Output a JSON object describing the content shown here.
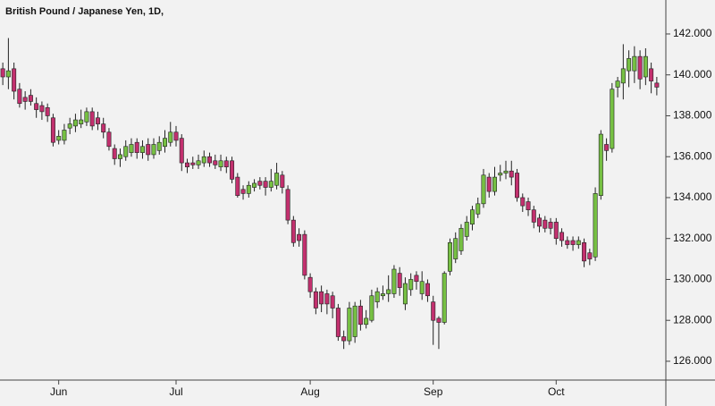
{
  "chart_data": {
    "type": "candlestick",
    "title": "British Pound / Japanese Yen, 1D,",
    "categories": [
      null,
      null,
      null,
      null,
      null,
      null,
      null,
      null,
      null,
      null,
      "Jun",
      null,
      null,
      null,
      null,
      null,
      null,
      null,
      null,
      null,
      null,
      null,
      null,
      null,
      null,
      null,
      null,
      null,
      null,
      null,
      null,
      "Jul",
      null,
      null,
      null,
      null,
      null,
      null,
      null,
      null,
      null,
      null,
      null,
      null,
      null,
      null,
      null,
      null,
      null,
      null,
      null,
      null,
      null,
      null,
      null,
      "Aug",
      null,
      null,
      null,
      null,
      null,
      null,
      null,
      null,
      null,
      null,
      null,
      null,
      null,
      null,
      null,
      null,
      null,
      null,
      null,
      null,
      null,
      "Sep",
      null,
      null,
      null,
      null,
      null,
      null,
      null,
      null,
      null,
      null,
      null,
      null,
      null,
      null,
      null,
      null,
      null,
      null,
      null,
      null,
      null,
      "Oct",
      null,
      null,
      null,
      null,
      null,
      null,
      null,
      null,
      null,
      null,
      null,
      null,
      null,
      null,
      null,
      null,
      null,
      null
    ],
    "open": [
      140.3,
      139.9,
      140.3,
      139.3,
      138.9,
      139.0,
      138.6,
      138.5,
      138.4,
      137.9,
      136.8,
      136.8,
      137.4,
      137.5,
      137.6,
      137.7,
      138.2,
      137.9,
      137.6,
      137.2,
      136.4,
      135.9,
      136.0,
      136.2,
      136.7,
      136.2,
      136.6,
      136.1,
      136.3,
      136.5,
      136.7,
      137.2,
      136.9,
      135.7,
      135.7,
      135.6,
      135.7,
      136.0,
      135.8,
      135.5,
      135.8,
      135.8,
      135.0,
      134.4,
      134.2,
      134.5,
      134.8,
      134.8,
      134.5,
      134.6,
      135.1,
      134.4,
      132.9,
      132.2,
      132.2,
      130.1,
      129.4,
      129.4,
      129.3,
      129.2,
      128.6,
      127.2,
      127.0,
      127.2,
      128.7,
      127.8,
      128.0,
      128.9,
      129.2,
      129.3,
      129.3,
      130.3,
      128.8,
      129.5,
      130.2,
      129.3,
      129.8,
      128.9,
      128.1,
      127.9,
      130.4,
      131.0,
      131.4,
      132.1,
      132.7,
      133.2,
      133.7,
      135.0,
      134.3,
      135.1,
      135.2,
      135.3,
      135.2,
      134.0,
      133.8,
      133.4,
      133.0,
      132.9,
      132.8,
      132.8,
      132.3,
      131.9,
      131.9,
      131.7,
      131.8,
      131.3,
      131.1,
      134.1,
      136.6,
      136.4,
      139.4,
      139.6,
      140.2,
      140.2,
      140.9,
      139.9,
      140.3,
      139.6
    ],
    "high": [
      140.6,
      141.8,
      140.6,
      139.6,
      139.2,
      139.3,
      138.9,
      138.7,
      138.6,
      138.1,
      137.3,
      137.6,
      137.9,
      138.1,
      138.3,
      138.4,
      138.4,
      138.2,
      137.9,
      137.4,
      136.6,
      136.4,
      136.8,
      136.9,
      136.9,
      136.8,
      136.9,
      136.9,
      137.0,
      137.3,
      137.7,
      137.5,
      137.1,
      135.9,
      136.0,
      136.1,
      136.3,
      136.2,
      136.1,
      136.1,
      136.0,
      136.0,
      135.2,
      134.6,
      134.8,
      134.9,
      135.0,
      135.0,
      135.4,
      135.7,
      135.3,
      134.6,
      133.1,
      132.5,
      132.4,
      130.3,
      129.6,
      129.7,
      129.5,
      129.4,
      128.8,
      127.5,
      128.9,
      128.9,
      129.0,
      128.5,
      129.5,
      129.6,
      129.7,
      130.2,
      130.7,
      130.6,
      130.1,
      130.3,
      130.4,
      130.4,
      130.0,
      129.2,
      128.2,
      130.4,
      132.0,
      132.3,
      132.7,
      133.1,
      133.6,
      134.0,
      135.4,
      135.2,
      135.5,
      135.6,
      135.8,
      135.8,
      135.4,
      134.2,
      134.0,
      133.6,
      133.2,
      133.1,
      133.0,
      133.0,
      132.5,
      132.1,
      132.1,
      132.1,
      132.0,
      131.5,
      134.5,
      137.3,
      136.9,
      139.6,
      139.9,
      141.5,
      141.2,
      141.4,
      141.2,
      141.3,
      140.6,
      139.9
    ],
    "low": [
      139.5,
      139.3,
      138.8,
      138.4,
      138.3,
      138.5,
      137.9,
      137.8,
      137.7,
      136.5,
      136.6,
      136.6,
      137.1,
      137.2,
      137.4,
      137.5,
      137.3,
      137.3,
      136.9,
      136.3,
      135.6,
      135.5,
      135.8,
      136.0,
      135.9,
      135.9,
      135.8,
      135.9,
      136.1,
      136.2,
      136.5,
      136.5,
      135.3,
      135.2,
      135.4,
      135.4,
      135.5,
      135.5,
      135.4,
      135.3,
      135.2,
      134.7,
      134.0,
      133.9,
      134.0,
      134.3,
      134.4,
      134.1,
      134.3,
      134.4,
      134.2,
      132.7,
      131.6,
      131.6,
      130.0,
      129.1,
      128.3,
      128.4,
      128.3,
      128.1,
      127.0,
      126.6,
      126.8,
      126.9,
      127.5,
      127.6,
      127.9,
      128.6,
      129.0,
      128.9,
      129.1,
      129.2,
      128.5,
      129.2,
      129.5,
      129.0,
      128.9,
      126.8,
      126.6,
      127.8,
      130.2,
      130.8,
      131.2,
      131.9,
      132.4,
      133.0,
      133.5,
      134.0,
      134.1,
      134.8,
      134.9,
      134.6,
      133.8,
      133.3,
      133.1,
      132.5,
      132.3,
      132.3,
      132.2,
      131.7,
      131.6,
      131.5,
      131.4,
      131.5,
      130.6,
      130.7,
      130.9,
      133.9,
      135.8,
      136.2,
      138.9,
      138.8,
      139.4,
      139.6,
      139.3,
      139.5,
      139.1,
      139.0
    ],
    "close": [
      139.9,
      140.2,
      139.2,
      138.6,
      138.7,
      138.7,
      138.3,
      138.2,
      138.0,
      136.7,
      137.0,
      137.3,
      137.6,
      137.8,
      137.8,
      138.2,
      137.5,
      137.6,
      137.2,
      136.5,
      135.9,
      136.1,
      136.5,
      136.6,
      136.2,
      136.5,
      136.1,
      136.6,
      136.7,
      136.9,
      137.2,
      136.8,
      135.7,
      135.5,
      135.6,
      135.8,
      136.0,
      135.7,
      135.6,
      135.8,
      135.5,
      134.9,
      134.1,
      134.2,
      134.6,
      134.7,
      134.6,
      134.5,
      134.8,
      135.2,
      134.5,
      132.9,
      131.8,
      131.9,
      130.2,
      129.4,
      128.6,
      128.8,
      128.8,
      128.6,
      127.2,
      127.0,
      128.6,
      128.7,
      127.8,
      128.1,
      129.2,
      129.4,
      129.3,
      129.5,
      130.5,
      129.6,
      129.8,
      130.0,
      129.9,
      129.9,
      129.2,
      128.0,
      127.9,
      130.3,
      131.8,
      132.0,
      132.5,
      132.8,
      133.4,
      133.7,
      135.1,
      134.3,
      135.0,
      135.2,
      135.3,
      135.0,
      134.0,
      133.6,
      133.4,
      132.8,
      132.6,
      132.5,
      132.5,
      132.0,
      131.9,
      131.7,
      131.7,
      131.9,
      130.9,
      131.0,
      134.2,
      137.1,
      136.3,
      139.3,
      139.7,
      140.3,
      140.8,
      140.9,
      139.8,
      140.9,
      139.7,
      139.4
    ],
    "up_color": "#76c043",
    "down_color": "#c2306e",
    "wick_color": "#222222",
    "ylim": [
      125.08,
      143.66
    ],
    "yticks": [
      {
        "value": 126,
        "label": "126.000"
      },
      {
        "value": 128,
        "label": "128.000"
      },
      {
        "value": 130,
        "label": "130.000"
      },
      {
        "value": 132,
        "label": "132.000"
      },
      {
        "value": 134,
        "label": "134.000"
      },
      {
        "value": 136,
        "label": "136.000"
      },
      {
        "value": 138,
        "label": "138.000"
      },
      {
        "value": 140,
        "label": "140.000"
      },
      {
        "value": 142,
        "label": "142.000"
      }
    ],
    "grid": false
  }
}
